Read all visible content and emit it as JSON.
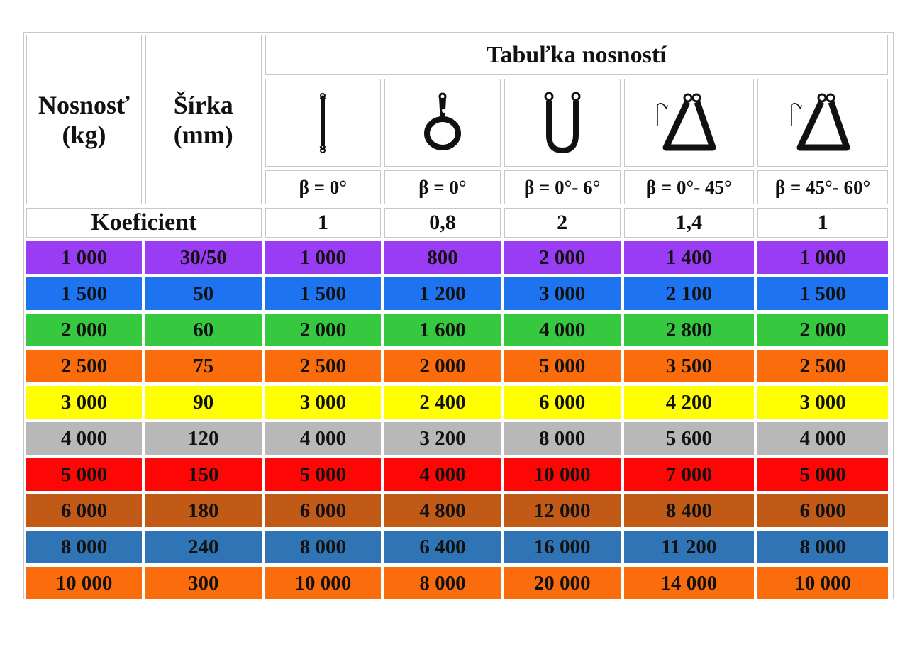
{
  "header": {
    "col_capacity": "Nosnosť\n(kg)",
    "col_width": "Šírka\n(mm)",
    "title": "Tabuľka nosností"
  },
  "configurations": [
    {
      "icon": "straight-sling-icon",
      "beta": "β = 0°",
      "coefficient": "1"
    },
    {
      "icon": "choke-hitch-icon",
      "beta": "β = 0°",
      "coefficient": "0,8"
    },
    {
      "icon": "basket-hitch-icon",
      "beta": "β = 0°- 6°",
      "coefficient": "2"
    },
    {
      "icon": "angled-basket-icon",
      "beta": "β = 0°- 45°",
      "coefficient": "1,4"
    },
    {
      "icon": "angled-basket-icon",
      "beta": "β = 45°- 60°",
      "coefficient": "1"
    }
  ],
  "coefficient_label": "Koeficient",
  "rows": [
    {
      "color": "#9b3cf5",
      "capacity": "1 000",
      "width": "30/50",
      "values": [
        "1 000",
        "800",
        "2 000",
        "1 400",
        "1 000"
      ]
    },
    {
      "color": "#1e73f0",
      "capacity": "1 500",
      "width": "50",
      "values": [
        "1 500",
        "1 200",
        "3 000",
        "2 100",
        "1 500"
      ]
    },
    {
      "color": "#36c940",
      "capacity": "2 000",
      "width": "60",
      "values": [
        "2 000",
        "1 600",
        "4 000",
        "2 800",
        "2 000"
      ]
    },
    {
      "color": "#fb6d0c",
      "capacity": "2 500",
      "width": "75",
      "values": [
        "2 500",
        "2 000",
        "5 000",
        "3 500",
        "2 500"
      ]
    },
    {
      "color": "#ffff00",
      "capacity": "3 000",
      "width": "90",
      "values": [
        "3 000",
        "2 400",
        "6 000",
        "4 200",
        "3 000"
      ]
    },
    {
      "color": "#b8b8b8",
      "capacity": "4 000",
      "width": "120",
      "values": [
        "4 000",
        "3 200",
        "8 000",
        "5 600",
        "4 000"
      ]
    },
    {
      "color": "#ff0606",
      "capacity": "5 000",
      "width": "150",
      "values": [
        "5 000",
        "4 000",
        "10 000",
        "7 000",
        "5 000"
      ]
    },
    {
      "color": "#c15a17",
      "capacity": "6 000",
      "width": "180",
      "values": [
        "6 000",
        "4 800",
        "12 000",
        "8 400",
        "6 000"
      ]
    },
    {
      "color": "#2f74b5",
      "capacity": "8 000",
      "width": "240",
      "values": [
        "8 000",
        "6 400",
        "16 000",
        "11 200",
        "8 000"
      ]
    },
    {
      "color": "#fb6d0c",
      "capacity": "10 000",
      "width": "300",
      "values": [
        "10 000",
        "8 000",
        "20 000",
        "14 000",
        "10 000"
      ]
    }
  ]
}
